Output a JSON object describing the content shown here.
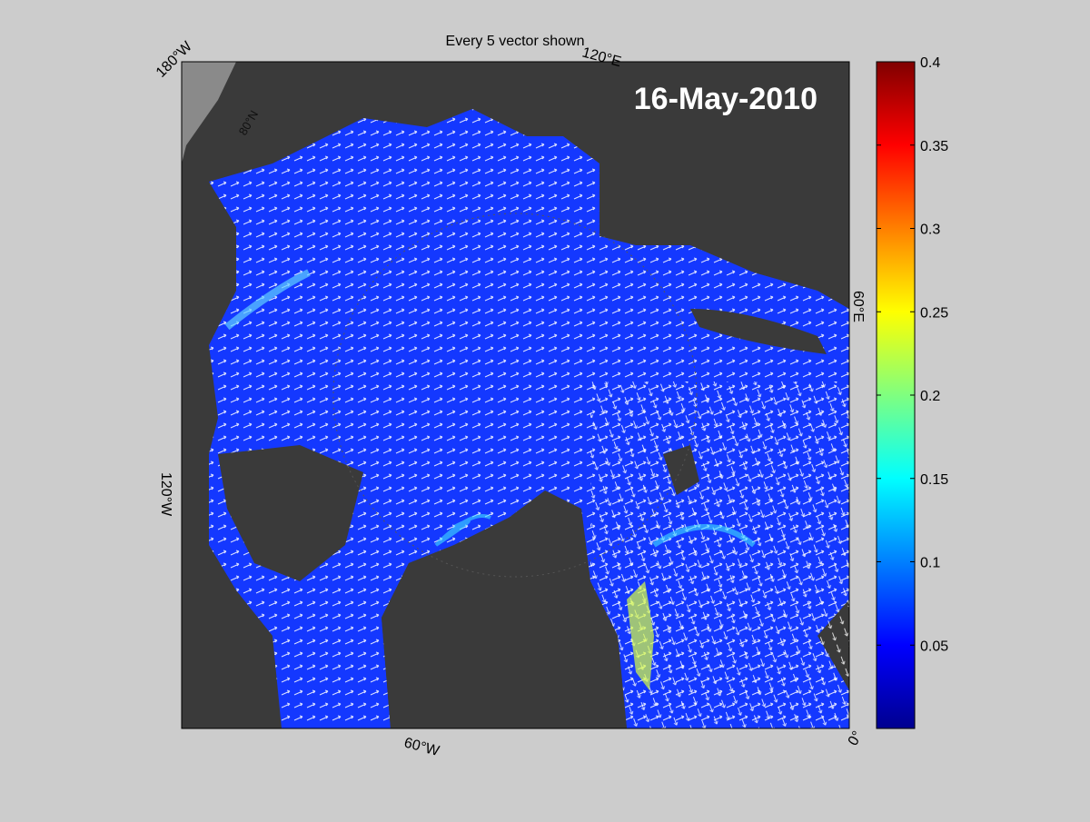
{
  "header": {
    "title": "Every 5 vector shown"
  },
  "map": {
    "date": "16-May-2010",
    "longitude_labels": [
      "180°W",
      "120°E",
      "60°E",
      "0°",
      "60°W",
      "120°W"
    ],
    "latitude_label": "80°N"
  },
  "colorbar": {
    "type": "colorbar",
    "range": [
      0,
      0.4
    ],
    "ticks": [
      0.05,
      0.1,
      0.15,
      0.2,
      0.25,
      0.3,
      0.35,
      0.4
    ]
  }
}
